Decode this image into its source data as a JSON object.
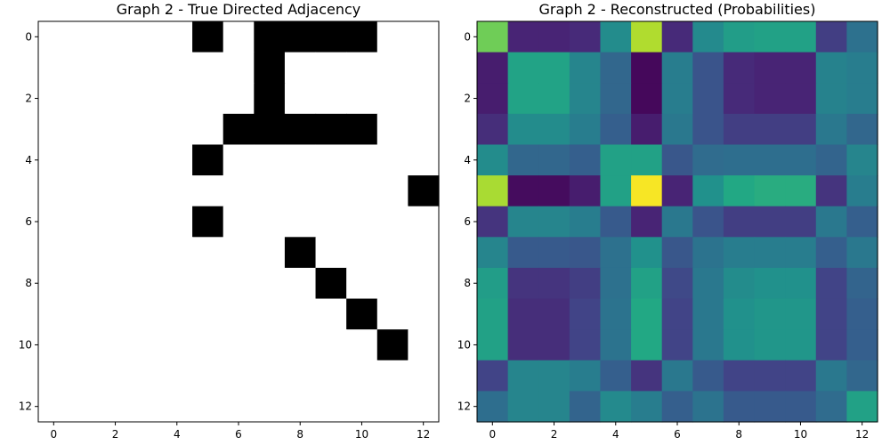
{
  "chart_data": [
    {
      "type": "heatmap",
      "title": "Graph 2 - True Directed Adjacency",
      "colormap": "gray_r",
      "value_range": [
        0,
        1
      ],
      "rows": 13,
      "cols": 13,
      "xticks": [
        0,
        2,
        4,
        6,
        8,
        10,
        12
      ],
      "yticks": [
        0,
        2,
        4,
        6,
        8,
        10,
        12
      ],
      "values": [
        [
          0,
          0,
          0,
          0,
          0,
          1,
          0,
          1,
          1,
          1,
          1,
          0,
          0
        ],
        [
          0,
          0,
          0,
          0,
          0,
          0,
          0,
          1,
          0,
          0,
          0,
          0,
          0
        ],
        [
          0,
          0,
          0,
          0,
          0,
          0,
          0,
          1,
          0,
          0,
          0,
          0,
          0
        ],
        [
          0,
          0,
          0,
          0,
          0,
          0,
          1,
          1,
          1,
          1,
          1,
          0,
          0
        ],
        [
          0,
          0,
          0,
          0,
          0,
          1,
          0,
          0,
          0,
          0,
          0,
          0,
          0
        ],
        [
          0,
          0,
          0,
          0,
          0,
          0,
          0,
          0,
          0,
          0,
          0,
          0,
          1
        ],
        [
          0,
          0,
          0,
          0,
          0,
          1,
          0,
          0,
          0,
          0,
          0,
          0,
          0
        ],
        [
          0,
          0,
          0,
          0,
          0,
          0,
          0,
          0,
          1,
          0,
          0,
          0,
          0
        ],
        [
          0,
          0,
          0,
          0,
          0,
          0,
          0,
          0,
          0,
          1,
          0,
          0,
          0
        ],
        [
          0,
          0,
          0,
          0,
          0,
          0,
          0,
          0,
          0,
          0,
          1,
          0,
          0
        ],
        [
          0,
          0,
          0,
          0,
          0,
          0,
          0,
          0,
          0,
          0,
          0,
          1,
          0
        ],
        [
          0,
          0,
          0,
          0,
          0,
          0,
          0,
          0,
          0,
          0,
          0,
          0,
          0
        ],
        [
          0,
          0,
          0,
          0,
          0,
          0,
          0,
          0,
          0,
          0,
          0,
          0,
          0
        ]
      ]
    },
    {
      "type": "heatmap",
      "title": "Graph 2 - Reconstructed (Probabilities)",
      "colormap": "viridis",
      "value_range": [
        0,
        1
      ],
      "rows": 13,
      "cols": 13,
      "xticks": [
        0,
        2,
        4,
        6,
        8,
        10,
        12
      ],
      "yticks": [
        0,
        2,
        4,
        6,
        8,
        10,
        12
      ],
      "values": [
        [
          0.78,
          0.1,
          0.1,
          0.12,
          0.48,
          0.88,
          0.12,
          0.47,
          0.55,
          0.57,
          0.57,
          0.18,
          0.37
        ],
        [
          0.08,
          0.58,
          0.58,
          0.45,
          0.33,
          0.02,
          0.42,
          0.26,
          0.12,
          0.1,
          0.1,
          0.44,
          0.42
        ],
        [
          0.08,
          0.58,
          0.58,
          0.45,
          0.33,
          0.02,
          0.42,
          0.26,
          0.12,
          0.1,
          0.1,
          0.44,
          0.42
        ],
        [
          0.13,
          0.48,
          0.48,
          0.42,
          0.3,
          0.08,
          0.4,
          0.26,
          0.18,
          0.18,
          0.18,
          0.4,
          0.33
        ],
        [
          0.48,
          0.33,
          0.33,
          0.3,
          0.57,
          0.57,
          0.27,
          0.35,
          0.36,
          0.36,
          0.36,
          0.32,
          0.45
        ],
        [
          0.87,
          0.03,
          0.03,
          0.08,
          0.57,
          0.99,
          0.1,
          0.5,
          0.6,
          0.62,
          0.62,
          0.15,
          0.42
        ],
        [
          0.15,
          0.45,
          0.45,
          0.42,
          0.28,
          0.1,
          0.4,
          0.26,
          0.18,
          0.18,
          0.18,
          0.4,
          0.3
        ],
        [
          0.45,
          0.28,
          0.28,
          0.27,
          0.37,
          0.5,
          0.27,
          0.38,
          0.42,
          0.42,
          0.42,
          0.3,
          0.4
        ],
        [
          0.55,
          0.15,
          0.15,
          0.18,
          0.37,
          0.57,
          0.22,
          0.4,
          0.48,
          0.5,
          0.5,
          0.2,
          0.32
        ],
        [
          0.57,
          0.13,
          0.13,
          0.2,
          0.38,
          0.6,
          0.2,
          0.4,
          0.5,
          0.52,
          0.52,
          0.2,
          0.3
        ],
        [
          0.57,
          0.13,
          0.13,
          0.2,
          0.38,
          0.6,
          0.2,
          0.4,
          0.5,
          0.52,
          0.52,
          0.2,
          0.3
        ],
        [
          0.2,
          0.45,
          0.45,
          0.42,
          0.3,
          0.15,
          0.4,
          0.28,
          0.2,
          0.2,
          0.2,
          0.4,
          0.33
        ],
        [
          0.36,
          0.45,
          0.45,
          0.32,
          0.47,
          0.42,
          0.3,
          0.38,
          0.28,
          0.28,
          0.28,
          0.35,
          0.57
        ]
      ]
    }
  ]
}
